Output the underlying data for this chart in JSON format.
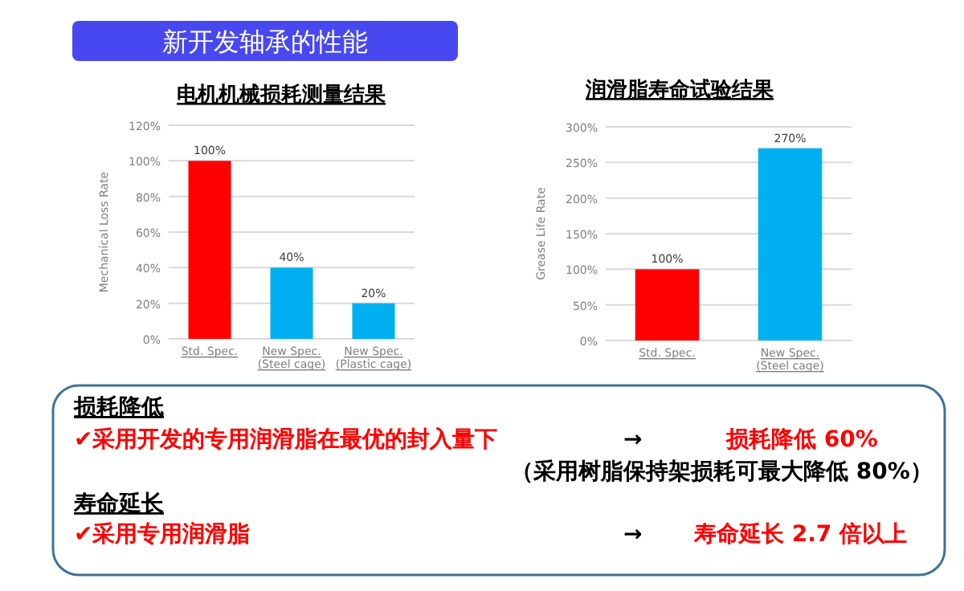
{
  "chart_data": [
    {
      "type": "other",
      "title": "新开发轴承的性能"
    },
    {
      "type": "bar",
      "title": "电机机械损耗测量结果",
      "ylabel": "Mechanical Loss Rate",
      "categories": [
        "Std. Spec.",
        "New Spec. (Steel cage)",
        "New Spec. (Plastic cage)"
      ],
      "values": [
        100,
        40,
        20
      ],
      "colors": [
        "#ff0000",
        "#00b0f0",
        "#00b0f0"
      ],
      "value_labels": [
        "100%",
        "40%",
        "20%"
      ],
      "ylim": [
        0,
        120
      ],
      "yticks": [
        {
          "value": 0,
          "label": "0%"
        },
        {
          "value": 20,
          "label": "20%"
        },
        {
          "value": 40,
          "label": "40%"
        },
        {
          "value": 60,
          "label": "60%"
        },
        {
          "value": 80,
          "label": "80%"
        },
        {
          "value": 100,
          "label": "100%"
        },
        {
          "value": 120,
          "label": "120%"
        }
      ],
      "grid": "y"
    },
    {
      "type": "bar",
      "title": "润滑脂寿命试验结果",
      "ylabel": "Grease Life Rate",
      "categories": [
        "Std. Spec.",
        "New Spec. (Steel cage)"
      ],
      "values": [
        100,
        270
      ],
      "colors": [
        "#ff0000",
        "#00b0f0"
      ],
      "value_labels": [
        "100%",
        "270%"
      ],
      "ylim": [
        0,
        300
      ],
      "yticks": [
        {
          "value": 0,
          "label": "0%"
        },
        {
          "value": 50,
          "label": "50%"
        },
        {
          "value": 100,
          "label": "100%"
        },
        {
          "value": 150,
          "label": "150%"
        },
        {
          "value": 200,
          "label": "200%"
        },
        {
          "value": 250,
          "label": "250%"
        },
        {
          "value": 300,
          "label": "300%"
        }
      ],
      "grid": "y"
    },
    {
      "type": "other",
      "annotations": [
        "损耗降低",
        "✔采用开发的专用润滑脂在最优的封入量下",
        "→",
        "损耗降低 60%",
        "（采用树脂保持架损耗可最大降低 80%）",
        "寿命延长",
        "✔采用专用润滑脂",
        "→",
        "寿命延长 2.7 倍以上"
      ]
    }
  ]
}
